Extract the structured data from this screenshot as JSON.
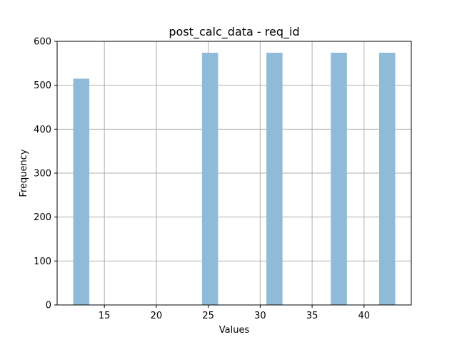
{
  "chart_data": {
    "type": "bar",
    "title": "post_calc_data - req_id",
    "xlabel": "Values",
    "ylabel": "Frequency",
    "xlim": [
      10.45,
      44.55
    ],
    "ylim": [
      0,
      600
    ],
    "xticks": [
      15,
      20,
      25,
      30,
      35,
      40
    ],
    "yticks": [
      0,
      100,
      200,
      300,
      400,
      500,
      600
    ],
    "grid": true,
    "bar_color": "#8fbbd9",
    "bins": [
      {
        "x0": 12,
        "x1": 13.55,
        "value": 515
      },
      {
        "x0": 13.55,
        "x1": 15.1,
        "value": 0
      },
      {
        "x0": 15.1,
        "x1": 16.65,
        "value": 0
      },
      {
        "x0": 16.65,
        "x1": 18.2,
        "value": 0
      },
      {
        "x0": 18.2,
        "x1": 19.75,
        "value": 0
      },
      {
        "x0": 19.75,
        "x1": 21.3,
        "value": 0
      },
      {
        "x0": 21.3,
        "x1": 22.85,
        "value": 0
      },
      {
        "x0": 22.85,
        "x1": 24.4,
        "value": 0
      },
      {
        "x0": 24.4,
        "x1": 25.95,
        "value": 574
      },
      {
        "x0": 25.95,
        "x1": 27.5,
        "value": 0
      },
      {
        "x0": 27.5,
        "x1": 29.05,
        "value": 0
      },
      {
        "x0": 29.05,
        "x1": 30.6,
        "value": 0
      },
      {
        "x0": 30.6,
        "x1": 32.15,
        "value": 574
      },
      {
        "x0": 32.15,
        "x1": 33.7,
        "value": 0
      },
      {
        "x0": 33.7,
        "x1": 35.25,
        "value": 0
      },
      {
        "x0": 35.25,
        "x1": 36.8,
        "value": 0
      },
      {
        "x0": 36.8,
        "x1": 38.35,
        "value": 574
      },
      {
        "x0": 38.35,
        "x1": 39.9,
        "value": 0
      },
      {
        "x0": 39.9,
        "x1": 41.45,
        "value": 0
      },
      {
        "x0": 41.45,
        "x1": 43.0,
        "value": 574
      }
    ]
  }
}
